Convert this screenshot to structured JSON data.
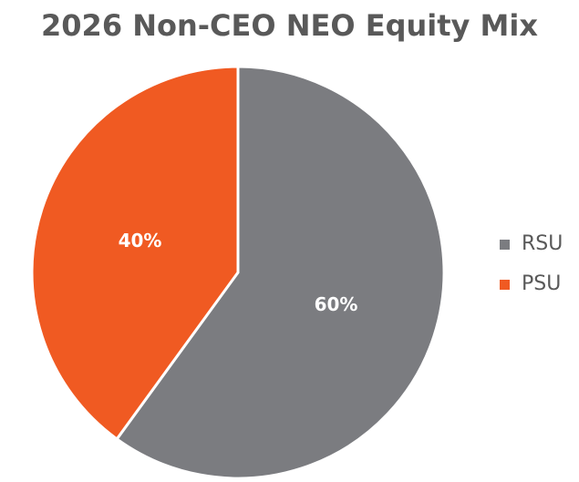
{
  "chart_data": {
    "type": "pie",
    "title": "2026 Non-CEO NEO Equity Mix",
    "slices": [
      {
        "name": "RSU",
        "value": 60,
        "label": "60%",
        "color": "#7b7c80"
      },
      {
        "name": "PSU",
        "value": 40,
        "label": "40%",
        "color": "#f05a22"
      }
    ],
    "legend": {
      "placement": "right",
      "entries": [
        "RSU",
        "PSU"
      ]
    }
  }
}
